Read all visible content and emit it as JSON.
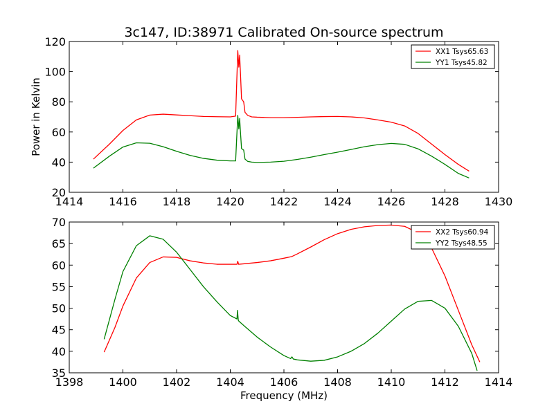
{
  "title": "3c147, ID:38971 Calibrated On-source spectrum",
  "chart_data": [
    {
      "type": "line",
      "ylabel": "Power in Kelvin",
      "xlabel": "",
      "xlim": [
        1414,
        1430
      ],
      "ylim": [
        20,
        120
      ],
      "xticks": [
        "1414",
        "1416",
        "1418",
        "1420",
        "1422",
        "1424",
        "1426",
        "1428",
        "1430"
      ],
      "yticks": [
        "20",
        "40",
        "60",
        "80",
        "100",
        "120"
      ],
      "legend_position": "top-right",
      "series": [
        {
          "name": "XX1 Tsys65.63",
          "color": "#ff0000",
          "x": [
            1414.9,
            1415.5,
            1416.0,
            1416.5,
            1417.0,
            1417.5,
            1418.0,
            1418.5,
            1419.0,
            1419.5,
            1420.0,
            1420.2,
            1420.28,
            1420.32,
            1420.35,
            1420.38,
            1420.42,
            1420.5,
            1420.55,
            1420.65,
            1420.8,
            1421.0,
            1421.5,
            1422.0,
            1422.5,
            1423.0,
            1423.5,
            1424.0,
            1424.5,
            1425.0,
            1425.5,
            1426.0,
            1426.5,
            1427.0,
            1427.5,
            1428.0,
            1428.5,
            1428.9
          ],
          "y": [
            42,
            52,
            61,
            68,
            71.2,
            71.8,
            71.3,
            70.8,
            70.3,
            70.1,
            70.0,
            70.5,
            114,
            103,
            111,
            99,
            82,
            80,
            73,
            71,
            70,
            69.8,
            69.5,
            69.5,
            69.7,
            70.0,
            70.2,
            70.3,
            70.0,
            69.3,
            68.0,
            66.5,
            64.0,
            59.0,
            52.0,
            45.0,
            38.5,
            34.0
          ]
        },
        {
          "name": "YY1 Tsys45.82",
          "color": "#008000",
          "x": [
            1414.9,
            1415.5,
            1416.0,
            1416.5,
            1417.0,
            1417.5,
            1418.0,
            1418.5,
            1419.0,
            1419.5,
            1420.0,
            1420.2,
            1420.28,
            1420.32,
            1420.35,
            1420.38,
            1420.42,
            1420.5,
            1420.55,
            1420.65,
            1420.8,
            1421.0,
            1421.5,
            1422.0,
            1422.5,
            1423.0,
            1423.5,
            1424.0,
            1424.5,
            1425.0,
            1425.5,
            1426.0,
            1426.5,
            1427.0,
            1427.5,
            1428.0,
            1428.5,
            1428.9
          ],
          "y": [
            36,
            44,
            50,
            52.8,
            52.5,
            50.2,
            47.2,
            44.5,
            42.5,
            41.3,
            40.8,
            40.8,
            71,
            62,
            69,
            60,
            49,
            48,
            42,
            40.5,
            40.0,
            39.8,
            40.0,
            40.6,
            41.8,
            43.3,
            45.0,
            46.6,
            48.4,
            50.2,
            51.6,
            52.4,
            51.8,
            48.8,
            44.0,
            38.5,
            32.5,
            29.5
          ]
        }
      ]
    },
    {
      "type": "line",
      "ylabel": "",
      "xlabel": "Frequency (MHz)",
      "xlim": [
        1398,
        1414
      ],
      "ylim": [
        35,
        70
      ],
      "xticks": [
        "1398",
        "1400",
        "1402",
        "1404",
        "1406",
        "1408",
        "1410",
        "1412",
        "1414"
      ],
      "yticks": [
        "35",
        "40",
        "45",
        "50",
        "55",
        "60",
        "65",
        "70"
      ],
      "legend_position": "top-right",
      "series": [
        {
          "name": "XX2 Tsys60.94",
          "color": "#ff0000",
          "x": [
            1399.3,
            1399.7,
            1400.0,
            1400.5,
            1401.0,
            1401.5,
            1402.0,
            1402.5,
            1403.0,
            1403.5,
            1404.0,
            1404.25,
            1404.28,
            1404.31,
            1404.5,
            1405.0,
            1405.5,
            1406.0,
            1406.3,
            1406.5,
            1407.0,
            1407.5,
            1408.0,
            1408.5,
            1409.0,
            1409.5,
            1410.0,
            1410.5,
            1411.0,
            1411.5,
            1412.0,
            1412.5,
            1413.0,
            1413.3
          ],
          "y": [
            39.8,
            45.5,
            50.5,
            57.0,
            60.6,
            61.9,
            61.8,
            61.0,
            60.5,
            60.2,
            60.2,
            60.2,
            60.9,
            60.2,
            60.3,
            60.6,
            61.0,
            61.6,
            62.0,
            62.6,
            64.2,
            65.9,
            67.3,
            68.3,
            68.9,
            69.2,
            69.3,
            69.0,
            67.5,
            64.0,
            57.5,
            49.5,
            41.5,
            37.5
          ]
        },
        {
          "name": "YY2 Tsys48.55",
          "color": "#008000",
          "x": [
            1399.3,
            1399.7,
            1400.0,
            1400.5,
            1401.0,
            1401.5,
            1402.0,
            1402.5,
            1403.0,
            1403.5,
            1404.0,
            1404.25,
            1404.27,
            1404.3,
            1404.32,
            1404.5,
            1405.0,
            1405.5,
            1406.0,
            1406.25,
            1406.3,
            1406.35,
            1406.5,
            1407.0,
            1407.5,
            1408.0,
            1408.5,
            1409.0,
            1409.5,
            1410.0,
            1410.5,
            1411.0,
            1411.5,
            1412.0,
            1412.5,
            1413.0,
            1413.2
          ],
          "y": [
            42.8,
            52.0,
            58.5,
            64.5,
            66.8,
            66.0,
            63.0,
            59.0,
            55.0,
            51.5,
            48.3,
            47.5,
            49.5,
            47.2,
            47.0,
            46.0,
            43.3,
            41.0,
            39.0,
            38.3,
            38.7,
            38.2,
            38.0,
            37.7,
            37.9,
            38.7,
            40.0,
            41.8,
            44.2,
            47.0,
            49.8,
            51.6,
            51.8,
            50.0,
            45.8,
            39.5,
            35.5
          ]
        }
      ]
    }
  ]
}
